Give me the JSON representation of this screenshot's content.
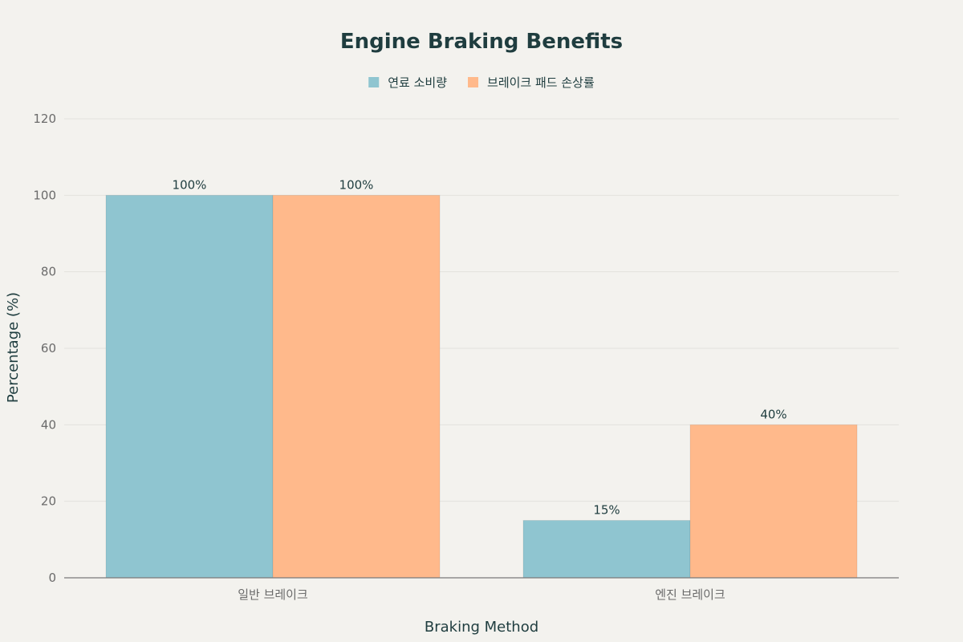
{
  "chart_data": {
    "type": "bar",
    "title": "Engine Braking Benefits",
    "xlabel": "Braking Method",
    "ylabel": "Percentage (%)",
    "ylim": [
      0,
      120
    ],
    "yticks": [
      0,
      20,
      40,
      60,
      80,
      100,
      120
    ],
    "categories": [
      "일반 브레이크",
      "엔진 브레이크"
    ],
    "series": [
      {
        "name": "연료 소비량",
        "values": [
          100,
          15
        ],
        "color": "#8fc5d0",
        "labels": [
          "100%",
          "15%"
        ]
      },
      {
        "name": "브레이크 패드 손상률",
        "values": [
          100,
          40
        ],
        "color": "#ffb98b",
        "labels": [
          "100%",
          "40%"
        ]
      }
    ],
    "legend_position": "top-center",
    "grid": true
  }
}
